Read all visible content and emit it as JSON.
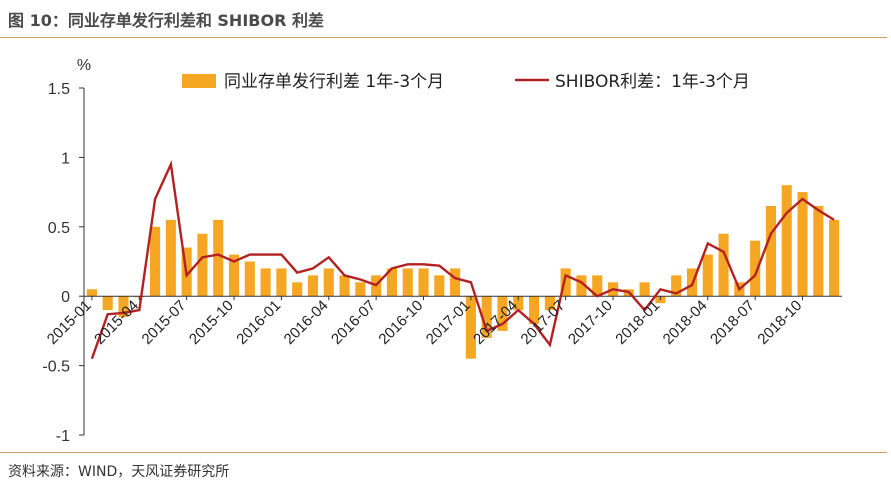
{
  "header": {
    "title": "图 10：同业存单发行利差和 SHIBOR 利差"
  },
  "footer": {
    "source": "资料来源：WIND，天风证券研究所"
  },
  "chart_data": {
    "type": "bar+line",
    "ylabel": "%",
    "ylim": [
      -1,
      1.5
    ],
    "yticks": [
      "1.5",
      "1",
      "0.5",
      "0",
      "-0.5",
      "-1"
    ],
    "x_tick_labels": [
      "2015-01",
      "2015-04",
      "2015-07",
      "2015-10",
      "2016-01",
      "2016-04",
      "2016-07",
      "2016-10",
      "2017-01",
      "2017-04",
      "2017-07",
      "2017-10",
      "2018-01",
      "2018-04",
      "2018-07",
      "2018-10"
    ],
    "legend": [
      "同业存单发行利差 1年-3个月",
      "SHIBOR利差：1年-3个月"
    ],
    "colors": {
      "bars": "#f5a623",
      "line": "#b22222",
      "axis": "#333333"
    },
    "series": [
      {
        "name": "同业存单发行利差 1年-3个月",
        "type": "bar",
        "x": [
          "2015-01",
          "2015-02",
          "2015-03",
          "2015-04",
          "2015-05",
          "2015-06",
          "2015-07",
          "2015-08",
          "2015-09",
          "2015-10",
          "2015-11",
          "2015-12",
          "2016-01",
          "2016-02",
          "2016-03",
          "2016-04",
          "2016-05",
          "2016-06",
          "2016-07",
          "2016-08",
          "2016-09",
          "2016-10",
          "2016-11",
          "2016-12",
          "2017-01",
          "2017-02",
          "2017-03",
          "2017-04",
          "2017-05",
          "2017-06",
          "2017-07",
          "2017-08",
          "2017-09",
          "2017-10",
          "2017-11",
          "2017-12",
          "2018-01",
          "2018-02",
          "2018-03",
          "2018-04",
          "2018-05",
          "2018-06",
          "2018-07",
          "2018-08",
          "2018-09",
          "2018-10",
          "2018-11",
          "2018-12"
        ],
        "values": [
          0.05,
          -0.1,
          -0.15,
          0.0,
          0.5,
          0.55,
          0.35,
          0.45,
          0.55,
          0.3,
          0.25,
          0.2,
          0.2,
          0.1,
          0.15,
          0.2,
          0.15,
          0.1,
          0.15,
          0.2,
          0.2,
          0.2,
          0.15,
          0.2,
          -0.45,
          -0.3,
          -0.25,
          -0.1,
          -0.2,
          -0.1,
          0.2,
          0.15,
          0.15,
          0.1,
          0.05,
          0.1,
          -0.05,
          0.15,
          0.2,
          0.3,
          0.45,
          0.1,
          0.4,
          0.65,
          0.8,
          0.75,
          0.65,
          0.55
        ]
      },
      {
        "name": "SHIBOR利差：1年-3个月",
        "type": "line",
        "x": [
          "2015-01",
          "2015-02",
          "2015-03",
          "2015-04",
          "2015-05",
          "2015-06",
          "2015-07",
          "2015-08",
          "2015-09",
          "2015-10",
          "2015-11",
          "2015-12",
          "2016-01",
          "2016-02",
          "2016-03",
          "2016-04",
          "2016-05",
          "2016-06",
          "2016-07",
          "2016-08",
          "2016-09",
          "2016-10",
          "2016-11",
          "2016-12",
          "2017-01",
          "2017-02",
          "2017-03",
          "2017-04",
          "2017-05",
          "2017-06",
          "2017-07",
          "2017-08",
          "2017-09",
          "2017-10",
          "2017-11",
          "2017-12",
          "2018-01",
          "2018-02",
          "2018-03",
          "2018-04",
          "2018-05",
          "2018-06",
          "2018-07",
          "2018-08",
          "2018-09",
          "2018-10",
          "2018-11",
          "2018-12"
        ],
        "values": [
          -0.45,
          -0.13,
          -0.12,
          -0.1,
          0.7,
          0.95,
          0.15,
          0.28,
          0.3,
          0.25,
          0.3,
          0.3,
          0.3,
          0.17,
          0.2,
          0.28,
          0.15,
          0.12,
          0.08,
          0.2,
          0.23,
          0.23,
          0.22,
          0.13,
          0.1,
          -0.25,
          -0.2,
          -0.1,
          -0.2,
          -0.35,
          0.15,
          0.1,
          0.0,
          0.05,
          0.03,
          -0.1,
          0.05,
          0.02,
          0.08,
          0.38,
          0.32,
          0.05,
          0.15,
          0.45,
          0.6,
          0.7,
          0.62,
          0.55
        ]
      }
    ]
  }
}
